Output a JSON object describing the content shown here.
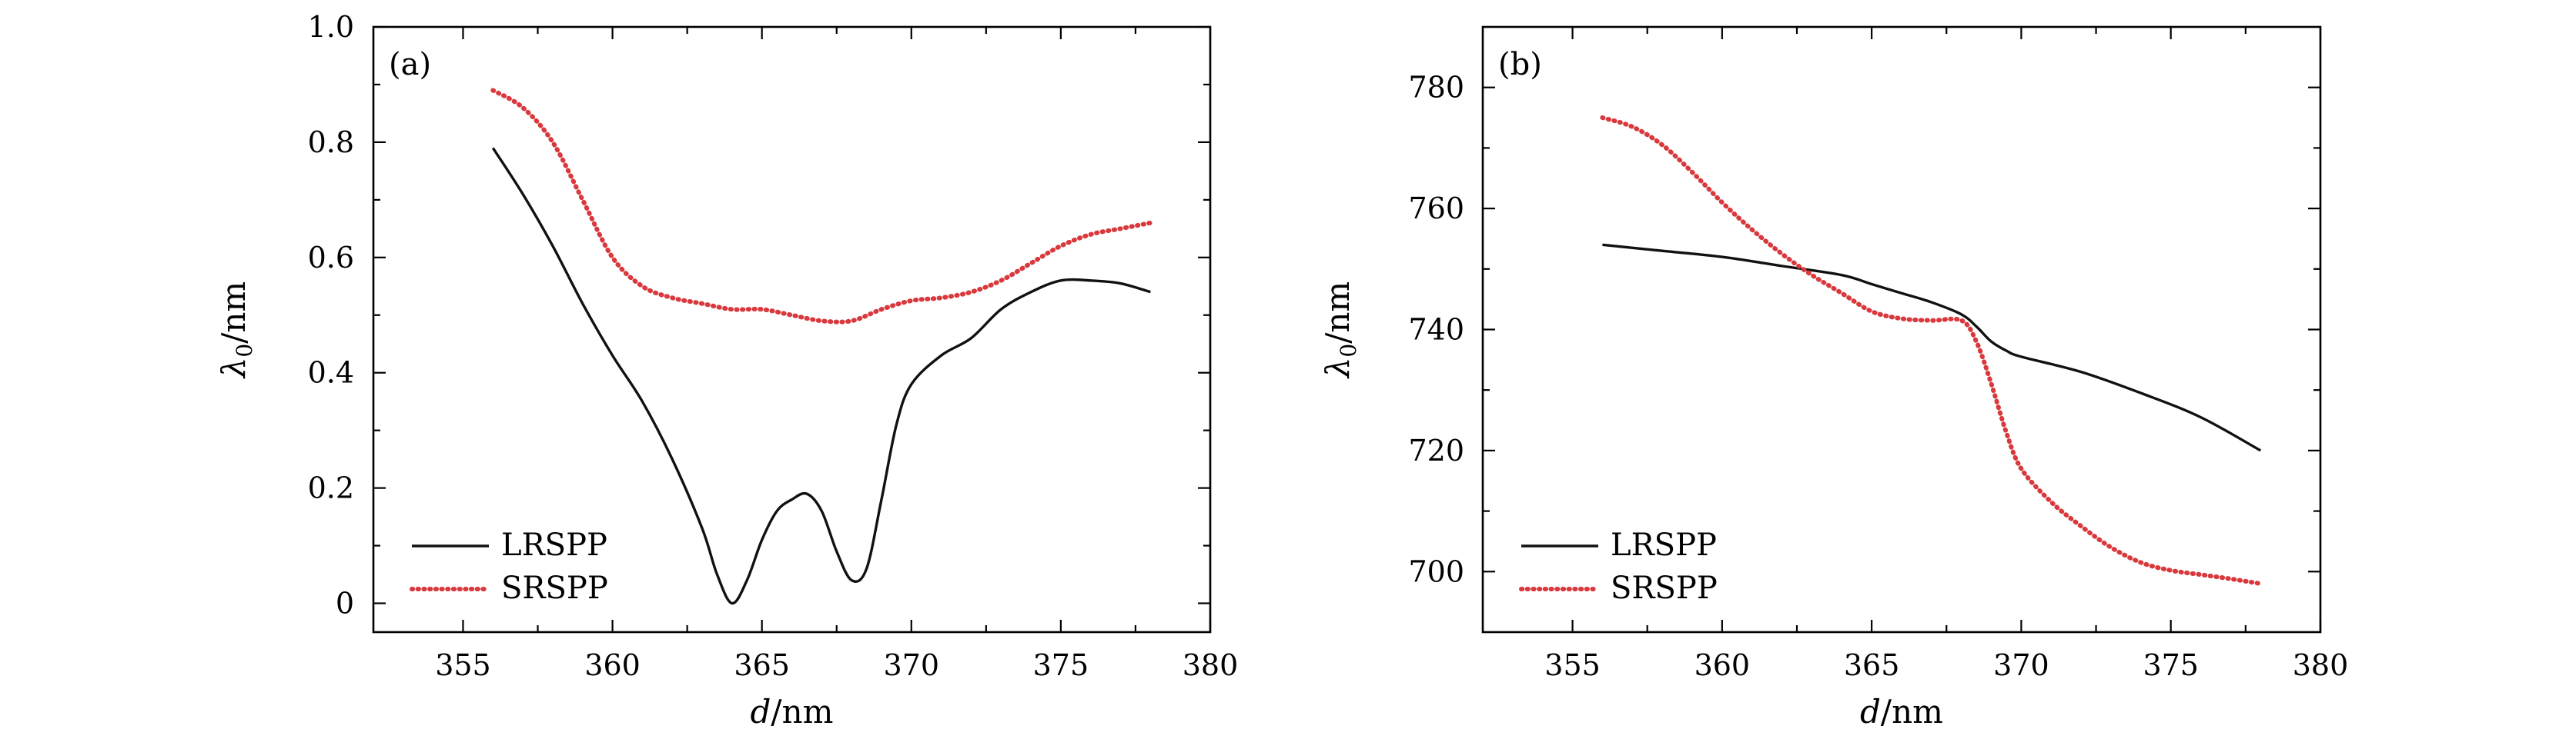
{
  "chart_data": [
    {
      "type": "line",
      "panel_label": "(a)",
      "xlabel_italic": "d",
      "xlabel_unit": "/nm",
      "ylabel_symbol": "λ",
      "ylabel_sub": "0",
      "ylabel_unit": "/nm",
      "xlim": [
        352,
        380
      ],
      "ylim": [
        -0.05,
        1.0
      ],
      "xticks": [
        355,
        360,
        365,
        370,
        375,
        380
      ],
      "yticks": [
        0,
        0.2,
        0.4,
        0.6,
        0.8,
        1.0
      ],
      "ytick_labels": [
        "0",
        "0.2",
        "0.4",
        "0.6",
        "0.8",
        "1.0"
      ],
      "legend": [
        "LRSPP",
        "SRSPP"
      ],
      "legend_position": "bottom-left",
      "series": [
        {
          "name": "LRSPP",
          "x": [
            356,
            357,
            358,
            359,
            360,
            361,
            362,
            363,
            363.5,
            364,
            364.5,
            365,
            365.5,
            366,
            366.5,
            367,
            367.5,
            368,
            368.5,
            369,
            369.5,
            370,
            371,
            372,
            373,
            374,
            375,
            376,
            377,
            378
          ],
          "values": [
            0.79,
            0.71,
            0.62,
            0.52,
            0.43,
            0.35,
            0.25,
            0.13,
            0.05,
            0.0,
            0.04,
            0.11,
            0.16,
            0.18,
            0.19,
            0.16,
            0.09,
            0.04,
            0.06,
            0.18,
            0.31,
            0.38,
            0.43,
            0.46,
            0.51,
            0.54,
            0.56,
            0.56,
            0.555,
            0.54
          ]
        },
        {
          "name": "SRSPP",
          "x": [
            356,
            357,
            358,
            359,
            360,
            361,
            362,
            363,
            364,
            365,
            366,
            367,
            368,
            369,
            370,
            371,
            372,
            373,
            374,
            375,
            376,
            377,
            378
          ],
          "values": [
            0.89,
            0.86,
            0.8,
            0.7,
            0.6,
            0.55,
            0.53,
            0.52,
            0.51,
            0.51,
            0.5,
            0.49,
            0.49,
            0.51,
            0.525,
            0.53,
            0.54,
            0.56,
            0.59,
            0.62,
            0.64,
            0.65,
            0.66
          ]
        }
      ]
    },
    {
      "type": "line",
      "panel_label": "(b)",
      "xlabel_italic": "d",
      "xlabel_unit": "/nm",
      "ylabel_symbol": "λ",
      "ylabel_sub": "0",
      "ylabel_unit": "/nm",
      "xlim": [
        352,
        380
      ],
      "ylim": [
        690,
        790
      ],
      "xticks": [
        355,
        360,
        365,
        370,
        375,
        380
      ],
      "yticks": [
        700,
        720,
        740,
        760,
        780
      ],
      "ytick_labels": [
        "700",
        "720",
        "740",
        "760",
        "780"
      ],
      "legend": [
        "LRSPP",
        "SRSPP"
      ],
      "legend_position": "bottom-left",
      "series": [
        {
          "name": "LRSPP",
          "x": [
            356,
            358,
            360,
            362,
            364,
            365,
            366,
            367,
            368,
            368.5,
            369,
            369.5,
            370,
            372,
            374,
            376,
            378
          ],
          "values": [
            754,
            753,
            752,
            750.5,
            749,
            747.5,
            746,
            744.5,
            742.5,
            740.5,
            738,
            736.5,
            735.5,
            733,
            729.5,
            725.5,
            720
          ]
        },
        {
          "name": "SRSPP",
          "x": [
            356,
            357,
            358,
            359,
            360,
            361,
            362,
            363,
            364,
            365,
            366,
            367,
            368,
            368.5,
            369,
            369.5,
            370,
            371,
            372,
            373,
            374,
            375,
            376,
            377,
            378
          ],
          "values": [
            775,
            773.5,
            770.5,
            766,
            761,
            756.5,
            752.5,
            749,
            746,
            743,
            741.8,
            741.5,
            741.5,
            738,
            731,
            723,
            717,
            711.5,
            707.5,
            704,
            701.5,
            700.2,
            699.5,
            698.8,
            698
          ]
        }
      ]
    }
  ]
}
